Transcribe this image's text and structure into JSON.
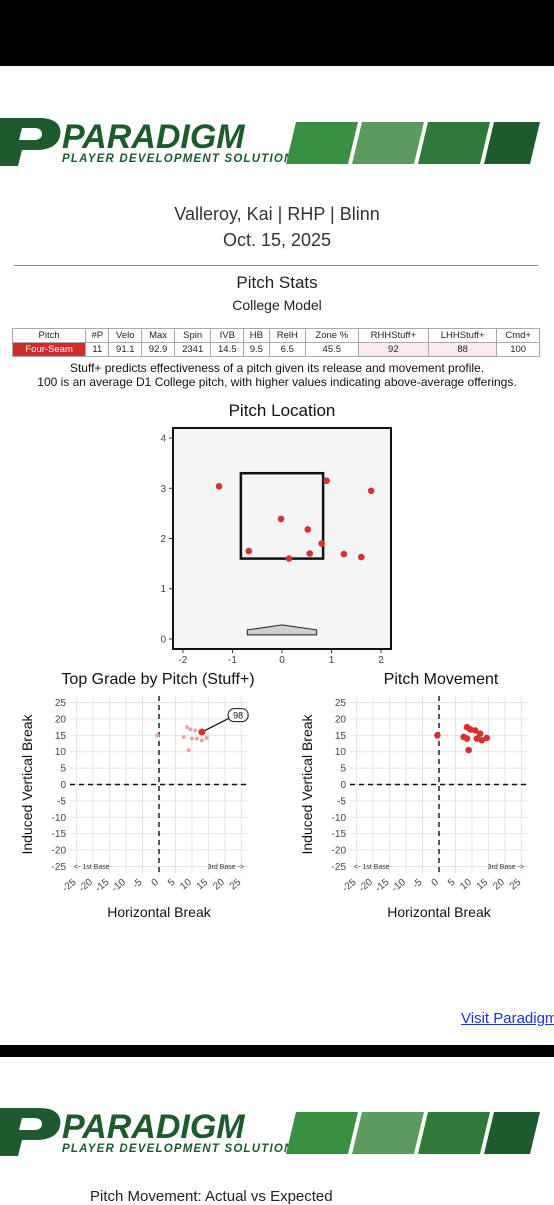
{
  "brand": {
    "name": "PARADIGM",
    "tagline": "PLAYER DEVELOPMENT SOLUTIONS",
    "green_dark": "#1d5a2c",
    "green_mid": "#2e7a3a",
    "green_light": "#3b8f43"
  },
  "player": {
    "line": "Valleroy, Kai | RHP | Blinn",
    "date": "Oct. 15, 2025"
  },
  "stats": {
    "title": "Pitch Stats",
    "subtitle": "College Model",
    "headers": [
      "Pitch",
      "#P",
      "Velo",
      "Max",
      "Spin",
      "IVB",
      "HB",
      "RelH",
      "Zone %",
      "RHHStuff+",
      "LHHStuff+",
      "Cmd+"
    ],
    "row": [
      "Four-Seam",
      "11",
      "91.1",
      "92.9",
      "2341",
      "14.5",
      "9.5",
      "6.5",
      "45.5",
      "92",
      "88",
      "100"
    ],
    "note1": "Stuff+ predicts effectiveness of a pitch given its release and movement profile.",
    "note2": "100 is an average D1 College pitch, with higher values indicating above-average offerings."
  },
  "link_text": "Visit Paradigm",
  "footer_title": "Pitch Movement: Actual vs Expected",
  "chart_data": [
    {
      "type": "scatter",
      "title": "Pitch Location",
      "xlim": [
        -2.2,
        2.2
      ],
      "ylim": [
        -0.2,
        4.2
      ],
      "xticks": [
        -2,
        -1,
        0,
        1,
        2
      ],
      "yticks": [
        0,
        1,
        2,
        3,
        4
      ],
      "zone": {
        "x": [
          -0.83,
          0.83
        ],
        "y": [
          1.6,
          3.3
        ]
      },
      "color": "#d63030",
      "points": [
        [
          -1.27,
          3.04
        ],
        [
          -0.67,
          1.75
        ],
        [
          -0.02,
          2.39
        ],
        [
          0.14,
          1.6
        ],
        [
          0.52,
          2.18
        ],
        [
          0.56,
          1.7
        ],
        [
          0.8,
          1.9
        ],
        [
          0.9,
          3.15
        ],
        [
          1.25,
          1.69
        ],
        [
          1.6,
          1.63
        ],
        [
          1.8,
          2.95
        ]
      ]
    },
    {
      "type": "scatter",
      "title": "Top Grade by Pitch (Stuff+)",
      "xlabel": "Horizontal Break",
      "ylabel": "Induced Vertical Break",
      "xlim": [
        -27,
        27
      ],
      "ylim": [
        -27,
        27
      ],
      "ticks": [
        -25,
        -20,
        -15,
        -10,
        -5,
        0,
        5,
        10,
        15,
        20,
        25
      ],
      "corner_left": "<- 1st Base",
      "corner_right": "3rd Base ->",
      "highlight": {
        "x": 13,
        "y": 16,
        "label": "98"
      },
      "points": [
        [
          -0.5,
          15
        ],
        [
          8.5,
          17.5
        ],
        [
          9.5,
          16.8
        ],
        [
          7.5,
          14.5
        ],
        [
          10,
          14
        ],
        [
          9,
          10.5
        ],
        [
          11.5,
          14
        ],
        [
          13,
          13.5
        ],
        [
          14.5,
          14.2
        ],
        [
          11,
          16.5
        ]
      ]
    },
    {
      "type": "scatter",
      "title": "Pitch Movement",
      "xlabel": "Horizontal Break",
      "ylabel": "Induced Vertical Break",
      "xlim": [
        -27,
        27
      ],
      "ylim": [
        -27,
        27
      ],
      "ticks": [
        -25,
        -20,
        -15,
        -10,
        -5,
        0,
        5,
        10,
        15,
        20,
        25
      ],
      "corner_left": "<- 1st Base",
      "corner_right": "3rd Base ->",
      "color": "#d63030",
      "points": [
        [
          -0.5,
          15
        ],
        [
          8.5,
          17.5
        ],
        [
          9.5,
          16.8
        ],
        [
          7.5,
          14.5
        ],
        [
          8.5,
          14
        ],
        [
          9,
          10.5
        ],
        [
          11.5,
          14
        ],
        [
          13,
          13.5
        ],
        [
          14.5,
          14.2
        ],
        [
          11,
          16.5
        ],
        [
          12.5,
          15.5
        ]
      ]
    }
  ]
}
